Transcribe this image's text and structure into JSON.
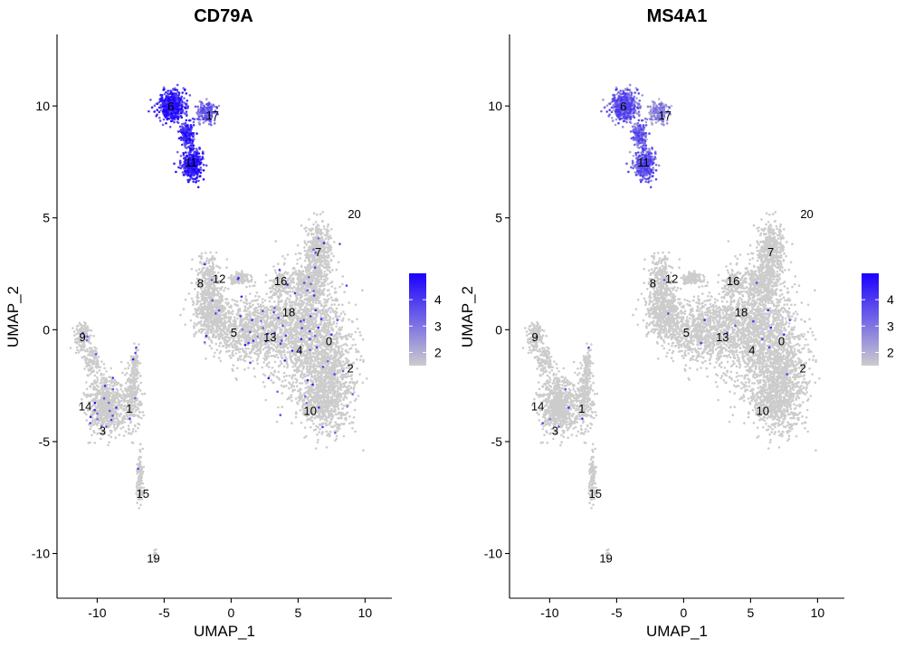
{
  "chart_data": [
    {
      "type": "scatter",
      "title": "CD79A",
      "xlabel": "UMAP_1",
      "ylabel": "UMAP_2",
      "xlim": [
        -13,
        12
      ],
      "ylim": [
        -12,
        13.2
      ],
      "xticks": [
        -10,
        -5,
        0,
        5,
        10
      ],
      "xtick_labels": [
        "-10",
        "-5",
        "0",
        "5",
        "10"
      ],
      "yticks": [
        -10,
        -5,
        0,
        5,
        10
      ],
      "ytick_labels": [
        "-10",
        "-5",
        "0",
        "5",
        "10"
      ],
      "grid": false,
      "legend": "right",
      "color_scale": {
        "low": "#cccccc",
        "high": "#1a00ff",
        "min": 1.5,
        "max": 5.0,
        "ticks": [
          "2",
          "3",
          "4"
        ],
        "tick_values": [
          2,
          3,
          4
        ]
      },
      "highlight_level": "high",
      "cluster_labels": [
        {
          "label": "0",
          "x": 7.3,
          "y": -0.5
        },
        {
          "label": "1",
          "x": -7.6,
          "y": -3.5
        },
        {
          "label": "2",
          "x": 8.9,
          "y": -1.7
        },
        {
          "label": "3",
          "x": -9.6,
          "y": -4.5
        },
        {
          "label": "4",
          "x": 5.1,
          "y": -0.9
        },
        {
          "label": "5",
          "x": 0.2,
          "y": -0.1
        },
        {
          "label": "6",
          "x": -4.5,
          "y": 10.0
        },
        {
          "label": "7",
          "x": 6.5,
          "y": 3.5
        },
        {
          "label": "8",
          "x": -2.3,
          "y": 2.1
        },
        {
          "label": "9",
          "x": -11.1,
          "y": -0.3
        },
        {
          "label": "10",
          "x": 5.9,
          "y": -3.6
        },
        {
          "label": "11",
          "x": -3.0,
          "y": 7.5
        },
        {
          "label": "12",
          "x": -0.9,
          "y": 2.3
        },
        {
          "label": "13",
          "x": 2.9,
          "y": -0.3
        },
        {
          "label": "14",
          "x": -10.9,
          "y": -3.4
        },
        {
          "label": "15",
          "x": -6.6,
          "y": -7.3
        },
        {
          "label": "16",
          "x": 3.7,
          "y": 2.2
        },
        {
          "label": "17",
          "x": -1.4,
          "y": 9.6
        },
        {
          "label": "18",
          "x": 4.3,
          "y": 0.8
        },
        {
          "label": "19",
          "x": -5.8,
          "y": -10.2
        },
        {
          "label": "20",
          "x": 9.2,
          "y": 5.2
        }
      ]
    },
    {
      "type": "scatter",
      "title": "MS4A1",
      "xlabel": "UMAP_1",
      "ylabel": "UMAP_2",
      "xlim": [
        -13,
        12
      ],
      "ylim": [
        -12,
        13.2
      ],
      "xticks": [
        -10,
        -5,
        0,
        5,
        10
      ],
      "xtick_labels": [
        "-10",
        "-5",
        "0",
        "5",
        "10"
      ],
      "yticks": [
        -10,
        -5,
        0,
        5,
        10
      ],
      "ytick_labels": [
        "-10",
        "-5",
        "0",
        "5",
        "10"
      ],
      "grid": false,
      "legend": "right",
      "color_scale": {
        "low": "#cccccc",
        "high": "#1a00ff",
        "min": 1.5,
        "max": 5.0,
        "ticks": [
          "2",
          "3",
          "4"
        ],
        "tick_values": [
          2,
          3,
          4
        ]
      },
      "highlight_level": "medium",
      "cluster_labels": [
        {
          "label": "0",
          "x": 7.3,
          "y": -0.5
        },
        {
          "label": "1",
          "x": -7.6,
          "y": -3.5
        },
        {
          "label": "2",
          "x": 8.9,
          "y": -1.7
        },
        {
          "label": "3",
          "x": -9.6,
          "y": -4.5
        },
        {
          "label": "4",
          "x": 5.1,
          "y": -0.9
        },
        {
          "label": "5",
          "x": 0.2,
          "y": -0.1
        },
        {
          "label": "6",
          "x": -4.5,
          "y": 10.0
        },
        {
          "label": "7",
          "x": 6.5,
          "y": 3.5
        },
        {
          "label": "8",
          "x": -2.3,
          "y": 2.1
        },
        {
          "label": "9",
          "x": -11.1,
          "y": -0.3
        },
        {
          "label": "10",
          "x": 5.9,
          "y": -3.6
        },
        {
          "label": "11",
          "x": -3.0,
          "y": 7.5
        },
        {
          "label": "12",
          "x": -0.9,
          "y": 2.3
        },
        {
          "label": "13",
          "x": 2.9,
          "y": -0.3
        },
        {
          "label": "14",
          "x": -10.9,
          "y": -3.4
        },
        {
          "label": "15",
          "x": -6.6,
          "y": -7.3
        },
        {
          "label": "16",
          "x": 3.7,
          "y": 2.2
        },
        {
          "label": "17",
          "x": -1.4,
          "y": 9.6
        },
        {
          "label": "18",
          "x": 4.3,
          "y": 0.8
        },
        {
          "label": "19",
          "x": -5.8,
          "y": -10.2
        },
        {
          "label": "20",
          "x": 9.2,
          "y": 5.2
        }
      ]
    }
  ]
}
